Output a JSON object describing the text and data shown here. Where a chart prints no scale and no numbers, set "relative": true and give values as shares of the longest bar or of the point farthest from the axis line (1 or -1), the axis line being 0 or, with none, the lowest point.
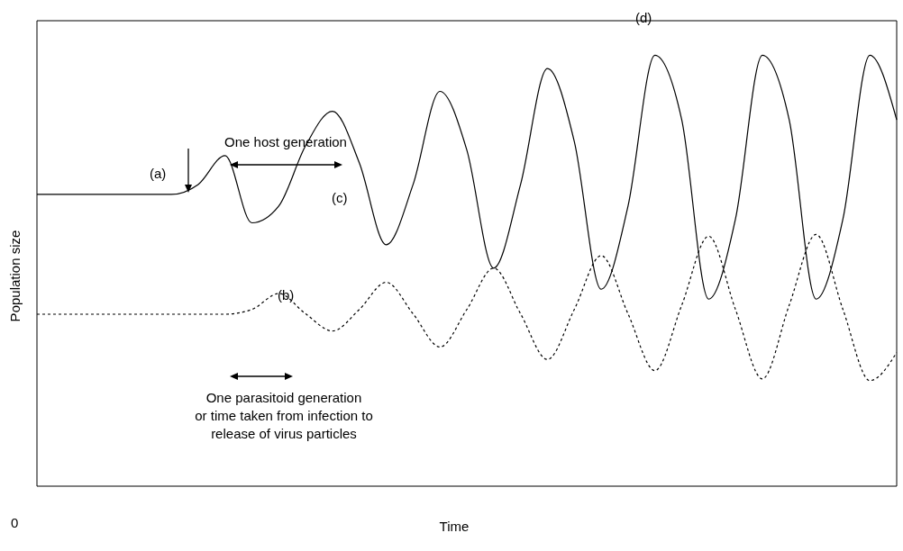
{
  "chart_data": {
    "type": "line",
    "relative": true,
    "xlabel": "Time",
    "ylabel": "Population size",
    "marker": "none",
    "categories": [
      null,
      null,
      null,
      null,
      null,
      null,
      null,
      null,
      null,
      null,
      null,
      null,
      null,
      null,
      null,
      null,
      null,
      null,
      null,
      null,
      null,
      null,
      null,
      null,
      null,
      null,
      null,
      null,
      null,
      null,
      null,
      null,
      null
    ],
    "series": [
      {
        "color": "#000000",
        "line_style": "solid",
        "values": [
          0.677,
          0.677,
          0.677,
          0.677,
          0.677,
          0.677,
          0.7,
          0.767,
          0.611,
          0.65,
          0.79,
          0.87,
          0.75,
          0.56,
          0.7,
          0.916,
          0.78,
          0.506,
          0.7,
          0.969,
          0.8,
          0.457,
          0.65,
          1.0,
          0.85,
          0.434,
          0.62,
          1.0,
          0.85,
          0.434,
          0.62,
          1.0,
          0.85
        ]
      },
      {
        "color": "#000000",
        "line_style": "dashed",
        "values": [
          0.399,
          0.399,
          0.399,
          0.399,
          0.399,
          0.399,
          0.399,
          0.399,
          0.41,
          0.447,
          0.4,
          0.36,
          0.41,
          0.473,
          0.4,
          0.323,
          0.41,
          0.506,
          0.4,
          0.294,
          0.41,
          0.535,
          0.4,
          0.268,
          0.42,
          0.58,
          0.41,
          0.249,
          0.42,
          0.584,
          0.41,
          0.245,
          0.31
        ]
      }
    ],
    "annotations": [
      "(a)",
      "(b)",
      "(c)",
      "(d)",
      "One host generation",
      "One parasitoid generation\nor time taken from infection to\nrelease of virus particles",
      "0"
    ]
  }
}
